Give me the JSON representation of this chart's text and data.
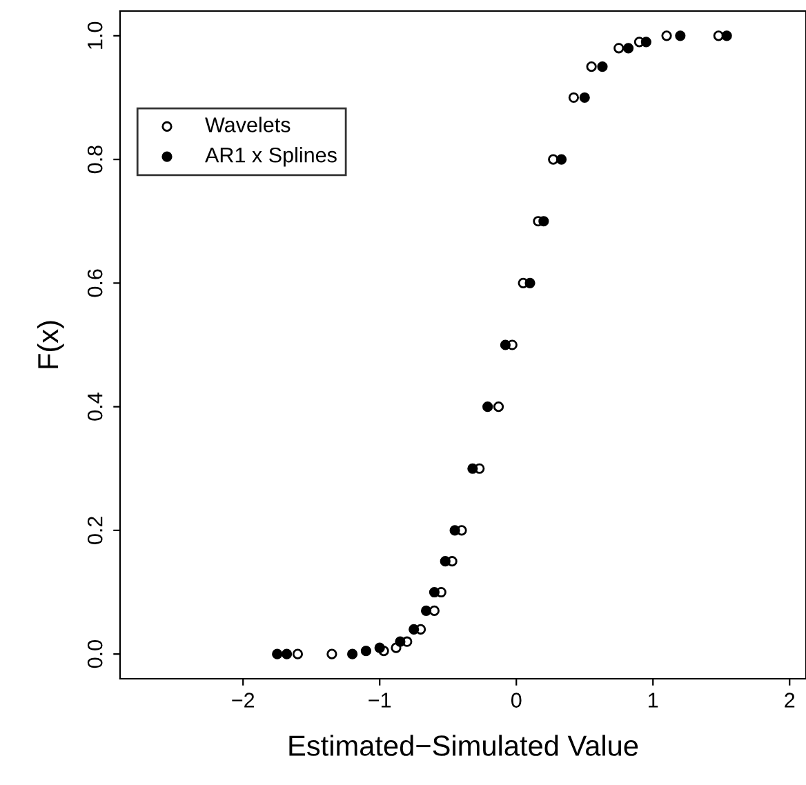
{
  "chart_data": {
    "type": "scatter",
    "xlabel": "Estimated−Simulated Value",
    "ylabel": "F(x)",
    "xlim": [
      -2.9,
      2.12
    ],
    "ylim": [
      -0.04,
      1.04
    ],
    "xticks": [
      {
        "value": -2,
        "label": "−2"
      },
      {
        "value": -1,
        "label": "−1"
      },
      0,
      1,
      2
    ],
    "yticks": [
      {
        "value": 0,
        "label": "0.0"
      },
      {
        "value": 0.2,
        "label": "0.2"
      },
      {
        "value": 0.4,
        "label": "0.4"
      },
      {
        "value": 0.6,
        "label": "0.6"
      },
      {
        "value": 0.8,
        "label": "0.8"
      },
      {
        "value": 1,
        "label": "1.0"
      }
    ],
    "grid": false,
    "legend": "top left",
    "marker": "circle",
    "series": [
      {
        "name": "Wavelets",
        "color": "#ffffff",
        "x": [
          -1.6,
          -1.35,
          -0.97,
          -0.88,
          -0.8,
          -0.7,
          -0.6,
          -0.55,
          -0.47,
          -0.4,
          -0.27,
          -0.13,
          -0.03,
          0.05,
          0.16,
          0.27,
          0.42,
          0.55,
          0.75,
          0.9,
          1.1,
          1.48
        ],
        "values": [
          0,
          0,
          0.005,
          0.01,
          0.02,
          0.04,
          0.07,
          0.1,
          0.15,
          0.2,
          0.3,
          0.4,
          0.5,
          0.6,
          0.7,
          0.8,
          0.9,
          0.95,
          0.98,
          0.99,
          1,
          1
        ]
      },
      {
        "name": "AR1 x Splines",
        "color": "#000000",
        "x": [
          -1.75,
          -1.68,
          -1.2,
          -1.1,
          -1.0,
          -0.85,
          -0.75,
          -0.66,
          -0.6,
          -0.52,
          -0.45,
          -0.32,
          -0.21,
          -0.08,
          0.1,
          0.2,
          0.33,
          0.5,
          0.63,
          0.82,
          0.95,
          1.2,
          1.54
        ],
        "values": [
          0,
          0,
          0,
          0.005,
          0.01,
          0.02,
          0.04,
          0.07,
          0.1,
          0.15,
          0.2,
          0.3,
          0.4,
          0.5,
          0.6,
          0.7,
          0.8,
          0.9,
          0.95,
          0.98,
          0.99,
          1,
          1
        ]
      }
    ]
  }
}
